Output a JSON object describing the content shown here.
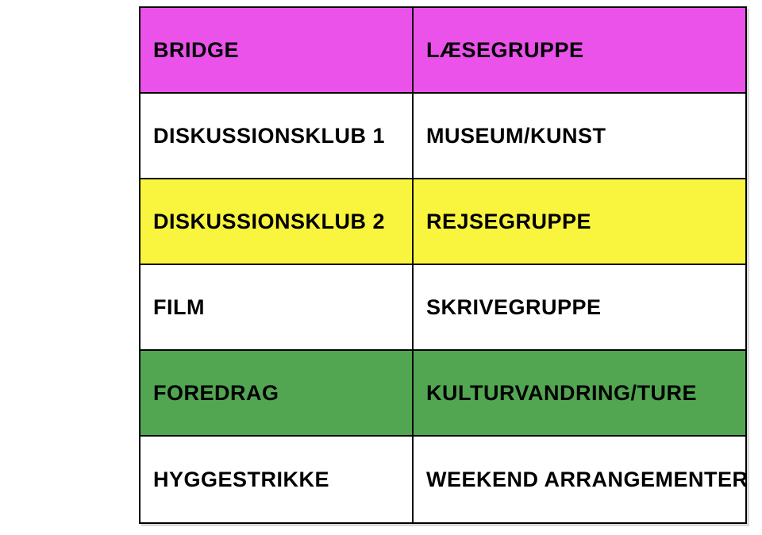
{
  "table": {
    "description": "activity-groups-table",
    "text_color": "#000000",
    "border_color": "#000000",
    "row_colors": {
      "magenta": "#EA52EA",
      "white": "#FFFFFF",
      "yellow": "#F9F53E",
      "green": "#52A652"
    },
    "rows": [
      {
        "left": "BRIDGE",
        "right": "LÆSEGRUPPE",
        "bg": "#EA52EA"
      },
      {
        "left": "DISKUSSIONSKLUB 1",
        "right": "MUSEUM/KUNST",
        "bg": "#FFFFFF"
      },
      {
        "left": "DISKUSSIONSKLUB 2",
        "right": "REJSEGRUPPE",
        "bg": "#F9F53E"
      },
      {
        "left": "FILM",
        "right": "SKRIVEGRUPPE",
        "bg": "#FFFFFF"
      },
      {
        "left": "FOREDRAG",
        "right": "KULTURVANDRING/TURE",
        "bg": "#52A652"
      },
      {
        "left": "HYGGESTRIKKE",
        "right": "WEEKEND ARRANGEMENTER",
        "bg": "#FFFFFF"
      }
    ]
  }
}
